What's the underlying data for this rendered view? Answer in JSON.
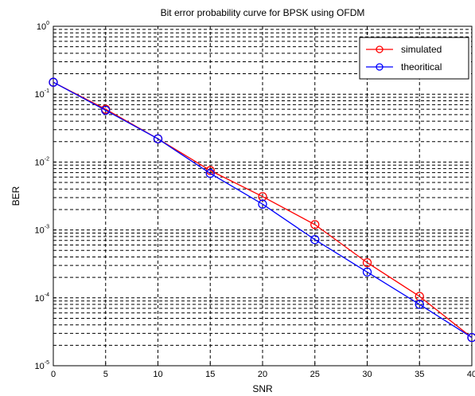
{
  "chart_data": {
    "type": "line",
    "title": "Bit error probability curve for BPSK using OFDM",
    "xlabel": "SNR",
    "ylabel": "BER",
    "xlim": [
      0,
      40
    ],
    "ylim": [
      1e-05,
      1
    ],
    "yscale": "log",
    "grid": true,
    "legend_position": "top-right",
    "x_ticks": [
      "0",
      "5",
      "10",
      "15",
      "20",
      "25",
      "30",
      "35",
      "40"
    ],
    "y_ticks": [
      {
        "base": "10",
        "exp": "0"
      },
      {
        "base": "10",
        "exp": "-1"
      },
      {
        "base": "10",
        "exp": "-2"
      },
      {
        "base": "10",
        "exp": "-3"
      },
      {
        "base": "10",
        "exp": "-4"
      },
      {
        "base": "10",
        "exp": "-5"
      }
    ],
    "series": [
      {
        "name": "simulated",
        "color": "#ff0000",
        "x": [
          0,
          5,
          10,
          15,
          20,
          25,
          30,
          35,
          40
        ],
        "y": [
          0.15,
          0.06,
          0.022,
          0.0075,
          0.0031,
          0.0012,
          0.00033,
          0.000105,
          2.6e-05
        ]
      },
      {
        "name": "theoritical",
        "color": "#0000ff",
        "x": [
          0,
          5,
          10,
          15,
          20,
          25,
          30,
          35,
          40
        ],
        "y": [
          0.15,
          0.058,
          0.022,
          0.0068,
          0.0024,
          0.00072,
          0.00024,
          8e-05,
          2.6e-05
        ]
      }
    ]
  }
}
